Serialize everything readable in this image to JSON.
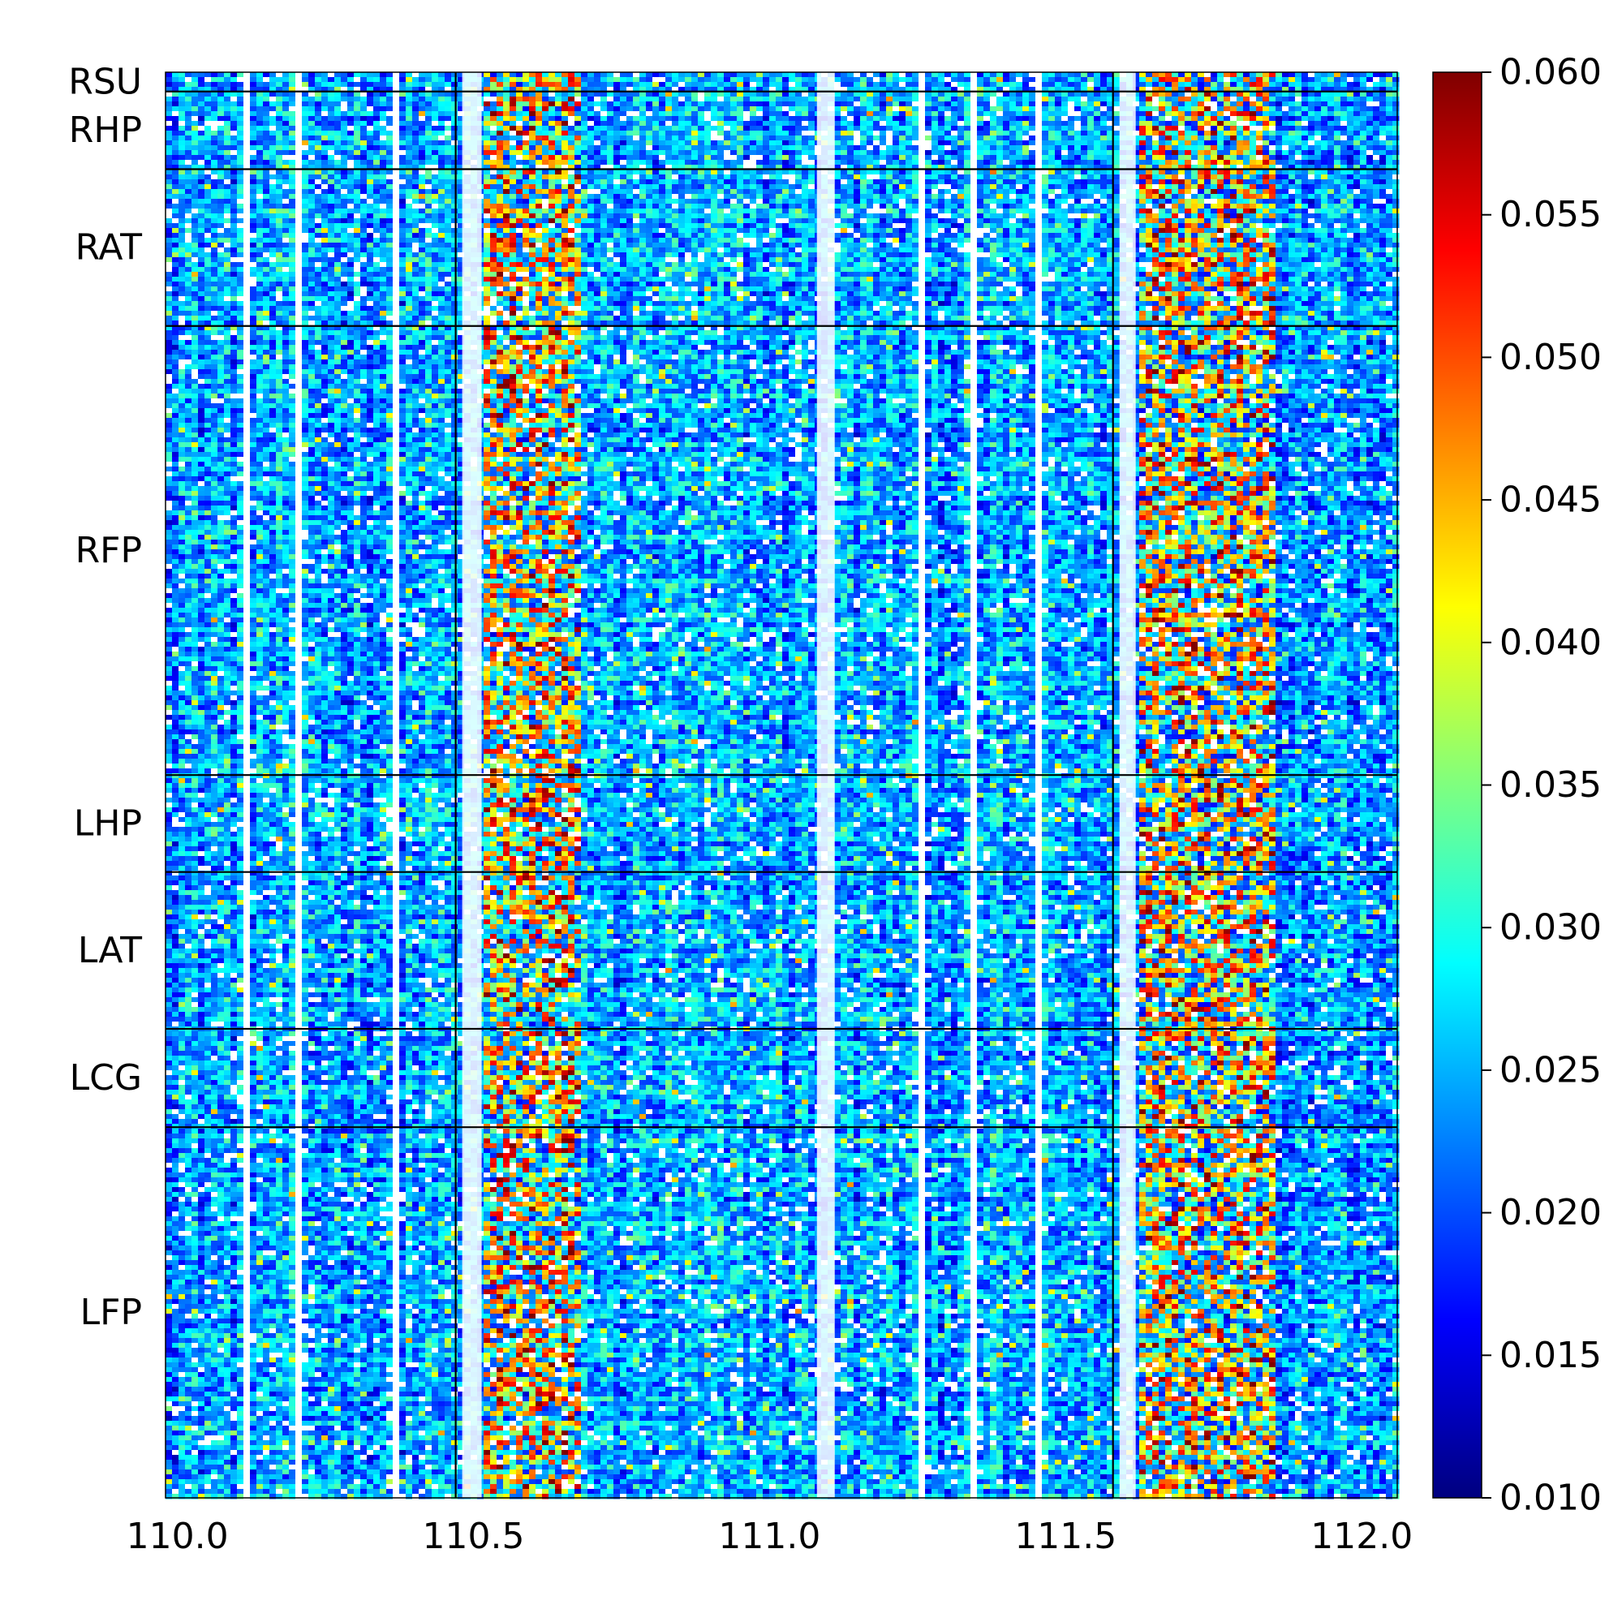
{
  "chart_data": {
    "type": "heatmap",
    "title": "",
    "xlabel": "",
    "ylabel": "",
    "xlim": [
      109.98,
      112.06
    ],
    "x_ticks": [
      110.0,
      110.5,
      111.0,
      111.5,
      112.0
    ],
    "x_tick_labels": [
      "110.0",
      "110.5",
      "111.0",
      "111.5",
      "112.0"
    ],
    "x_boundaries": [
      110.47,
      111.58
    ],
    "row_groups": [
      {
        "label": "RSU",
        "fraction": 0.0135
      },
      {
        "label": "RHP",
        "fraction": 0.0545
      },
      {
        "label": "RAT",
        "fraction": 0.11
      },
      {
        "label": "RFP",
        "fraction": 0.315
      },
      {
        "label": "LHP",
        "fraction": 0.068
      },
      {
        "label": "LAT",
        "fraction": 0.11
      },
      {
        "label": "LCG",
        "fraction": 0.069
      },
      {
        "label": "LFP",
        "fraction": 0.26
      }
    ],
    "colorbar": {
      "colormap": "jet",
      "min": 0.01,
      "max": 0.06,
      "ticks": [
        0.01,
        0.015,
        0.02,
        0.025,
        0.03,
        0.035,
        0.04,
        0.045,
        0.05,
        0.055,
        0.06
      ],
      "tick_labels": [
        "0.010",
        "0.015",
        "0.020",
        "0.025",
        "0.030",
        "0.035",
        "0.040",
        "0.045",
        "0.050",
        "0.055",
        "0.060"
      ],
      "colors": [
        "#00007f",
        "#0000ff",
        "#007fff",
        "#00ffff",
        "#7fff7f",
        "#ffff00",
        "#ff7f00",
        "#ff0000",
        "#7f0000"
      ]
    },
    "background_color": "#2d5bd8",
    "missing_color": "#ffffff",
    "grid": false,
    "legend": "none"
  }
}
